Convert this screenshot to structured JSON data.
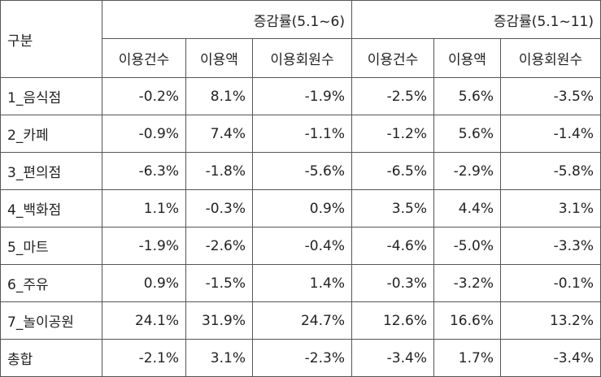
{
  "table": {
    "corner": "구분",
    "groups": [
      "증감률(5.1~6)",
      "증감률(5.1~11)"
    ],
    "columns": [
      "이용건수",
      "이용액",
      "이용회원수",
      "이용건수",
      "이용액",
      "이용회원수"
    ],
    "rows": [
      [
        "1_음식점",
        "-0.2%",
        "8.1%",
        "-1.9%",
        "-2.5%",
        "5.6%",
        "-3.5%"
      ],
      [
        "2_카페",
        "-0.9%",
        "7.4%",
        "-1.1%",
        "-1.2%",
        "5.6%",
        "-1.4%"
      ],
      [
        "3_편의점",
        "-6.3%",
        "-1.8%",
        "-5.6%",
        "-6.5%",
        "-2.9%",
        "-5.8%"
      ],
      [
        "4_백화점",
        "1.1%",
        "-0.3%",
        "0.9%",
        "3.5%",
        "4.4%",
        "3.1%"
      ],
      [
        "5_마트",
        "-1.9%",
        "-2.6%",
        "-0.4%",
        "-4.6%",
        "-5.0%",
        "-3.3%"
      ],
      [
        "6_주유",
        "0.9%",
        "-1.5%",
        "1.4%",
        "-0.3%",
        "-3.2%",
        "-0.1%"
      ],
      [
        "7_놀이공원",
        "24.1%",
        "31.9%",
        "24.7%",
        "12.6%",
        "16.6%",
        "13.2%"
      ],
      [
        "총합",
        "-2.1%",
        "3.1%",
        "-2.3%",
        "-3.4%",
        "1.7%",
        "-3.4%"
      ]
    ]
  }
}
